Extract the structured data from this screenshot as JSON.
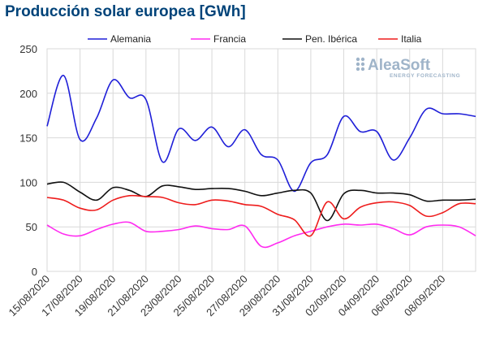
{
  "chart_data": {
    "type": "line",
    "title": "Producción solar europea [GWh]",
    "ylim": [
      0,
      250
    ],
    "yticks": [
      0,
      50,
      100,
      150,
      200,
      250
    ],
    "xtick_labels": [
      "15/08/2020",
      "17/08/2020",
      "19/08/2020",
      "21/08/2020",
      "23/08/2020",
      "25/08/2020",
      "27/08/2020",
      "29/08/2020",
      "31/08/2020",
      "02/09/2020",
      "04/09/2020",
      "06/09/2020",
      "08/09/2020"
    ],
    "x": [
      "15/08",
      "16/08",
      "17/08",
      "18/08",
      "19/08",
      "20/08",
      "21/08",
      "22/08",
      "23/08",
      "24/08",
      "25/08",
      "26/08",
      "27/08",
      "28/08",
      "29/08",
      "30/08",
      "31/08",
      "01/09",
      "02/09",
      "03/09",
      "04/09",
      "05/09",
      "06/09",
      "07/09",
      "08/09",
      "09/09",
      "10/09"
    ],
    "grid": true,
    "legend_position": "top",
    "series": [
      {
        "name": "Alemania",
        "color": "#1f1fd8",
        "values": [
          163,
          220,
          148,
          172,
          215,
          195,
          193,
          123,
          160,
          147,
          162,
          140,
          159,
          131,
          125,
          90,
          122,
          131,
          174,
          157,
          157,
          125,
          150,
          182,
          177,
          177,
          174
        ]
      },
      {
        "name": "Francia",
        "color": "#ff2bf0",
        "values": [
          52,
          42,
          40,
          47,
          53,
          55,
          45,
          45,
          47,
          51,
          48,
          47,
          51,
          28,
          32,
          40,
          45,
          50,
          53,
          52,
          53,
          48,
          41,
          50,
          52,
          50,
          40
        ]
      },
      {
        "name": "Pen. Ibérica",
        "color": "#111111",
        "values": [
          98,
          100,
          89,
          80,
          94,
          91,
          84,
          96,
          95,
          92,
          93,
          93,
          90,
          85,
          88,
          91,
          88,
          57,
          87,
          91,
          88,
          88,
          86,
          79,
          80,
          80,
          81
        ]
      },
      {
        "name": "Italia",
        "color": "#ee1c1c",
        "values": [
          83,
          80,
          71,
          69,
          80,
          85,
          84,
          83,
          77,
          75,
          80,
          79,
          75,
          73,
          64,
          58,
          40,
          78,
          59,
          72,
          77,
          78,
          74,
          62,
          66,
          76,
          76
        ]
      }
    ]
  },
  "watermark": {
    "brand": "AleaSoft",
    "tagline": "ENERGY FORECASTING"
  }
}
